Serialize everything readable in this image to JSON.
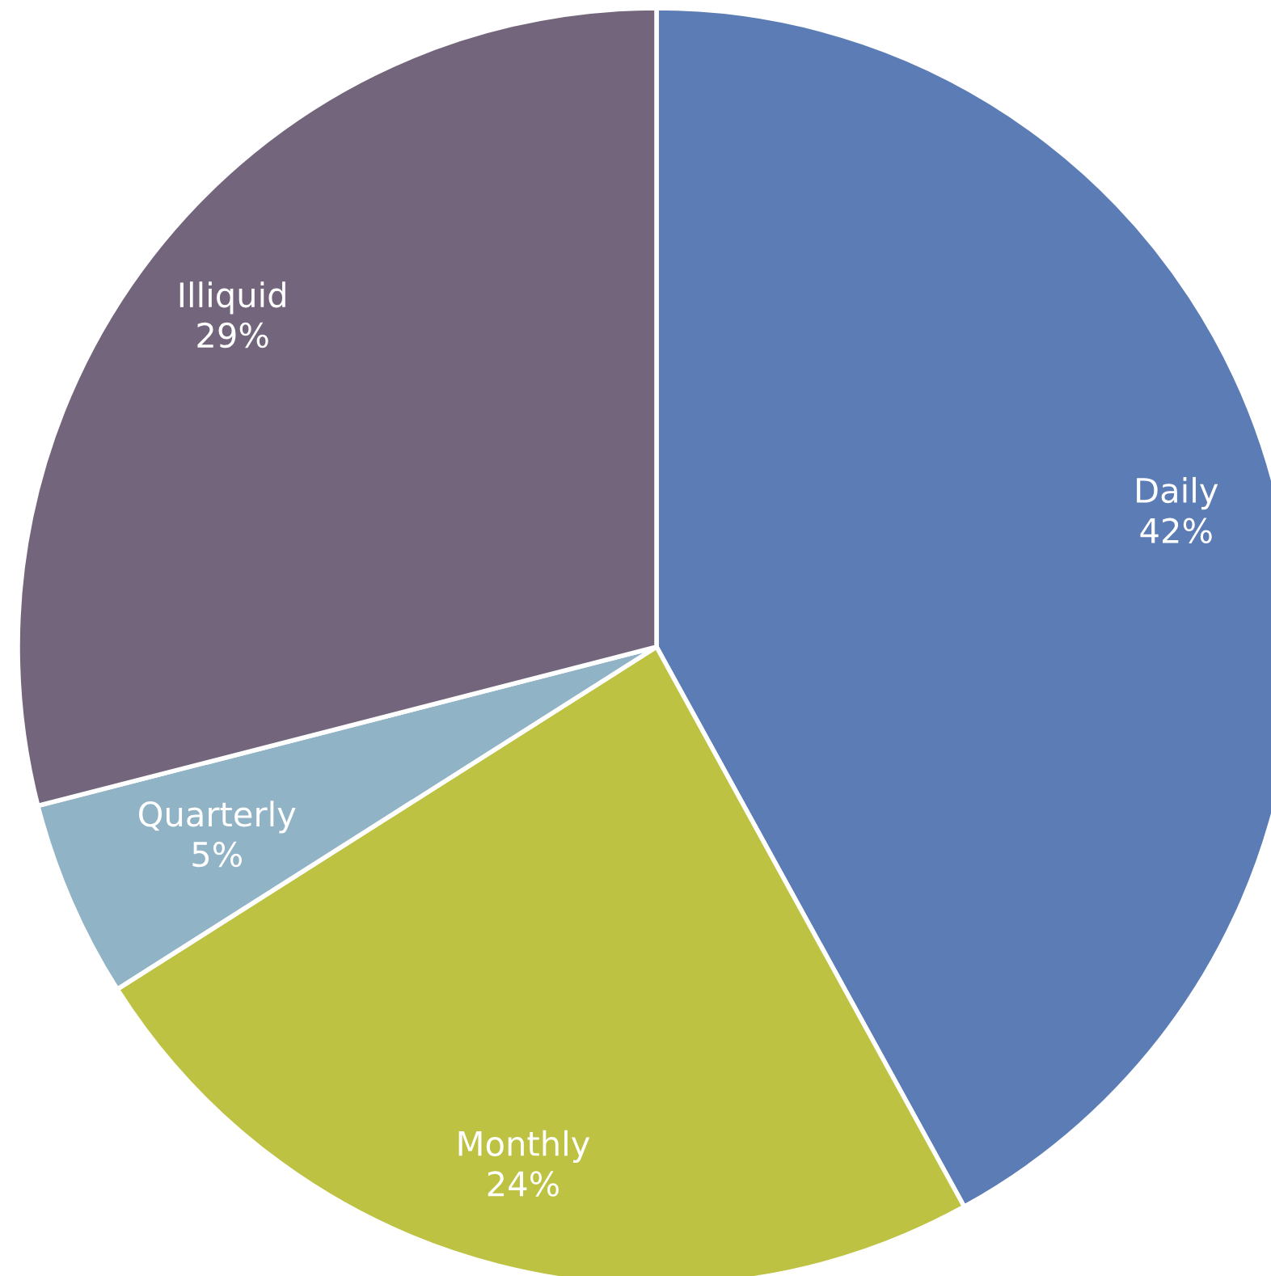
{
  "chart_data": {
    "type": "pie",
    "categories": [
      "Daily",
      "Monthly",
      "Quarterly",
      "Illiquid"
    ],
    "values": [
      42,
      24,
      5,
      29
    ],
    "value_labels": [
      "42%",
      "24%",
      "5%",
      "29%"
    ],
    "colors": [
      "#5b7cb5",
      "#bdc242",
      "#91b3c6",
      "#73657b"
    ],
    "legend": false
  }
}
